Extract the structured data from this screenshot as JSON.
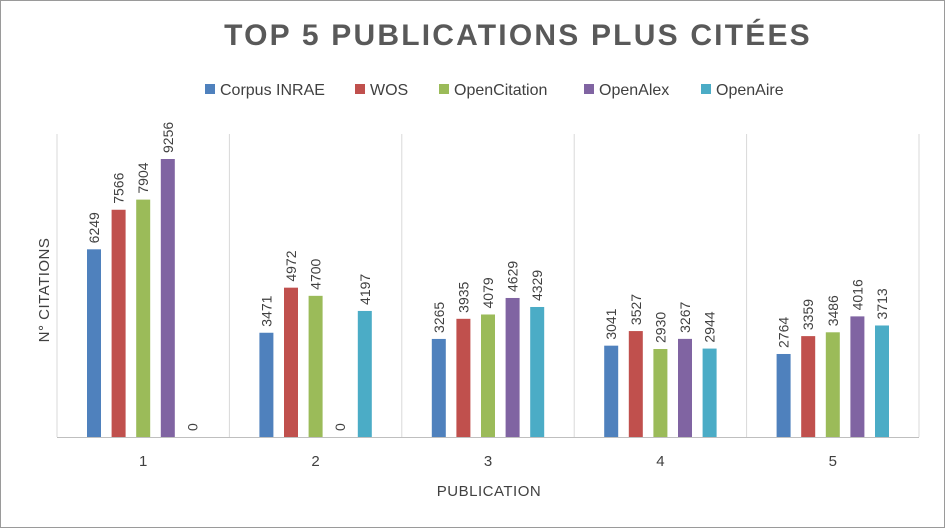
{
  "chart_data": {
    "type": "bar",
    "title": "TOP 5 PUBLICATIONS PLUS CITÉES",
    "xlabel": "PUBLICATION",
    "ylabel": "N° CITATIONS",
    "categories": [
      "1",
      "2",
      "3",
      "4",
      "5"
    ],
    "series": [
      {
        "name": "Corpus INRAE",
        "color": "#4F81BD",
        "values": [
          6249,
          3471,
          3265,
          3041,
          2764
        ]
      },
      {
        "name": "WOS",
        "color": "#C0504D",
        "values": [
          7566,
          4972,
          3935,
          3527,
          3359
        ]
      },
      {
        "name": "OpenCitation",
        "color": "#9BBB59",
        "values": [
          7904,
          4700,
          4079,
          2930,
          3486
        ]
      },
      {
        "name": "OpenAlex",
        "color": "#8064A2",
        "values": [
          9256,
          0,
          4629,
          3267,
          4016
        ]
      },
      {
        "name": "OpenAire",
        "color": "#4BACC6",
        "values": [
          0,
          4197,
          4329,
          2944,
          3713
        ]
      }
    ],
    "ylim": [
      0,
      10000
    ],
    "legend_position": "top",
    "grid": false,
    "data_labels": true
  }
}
